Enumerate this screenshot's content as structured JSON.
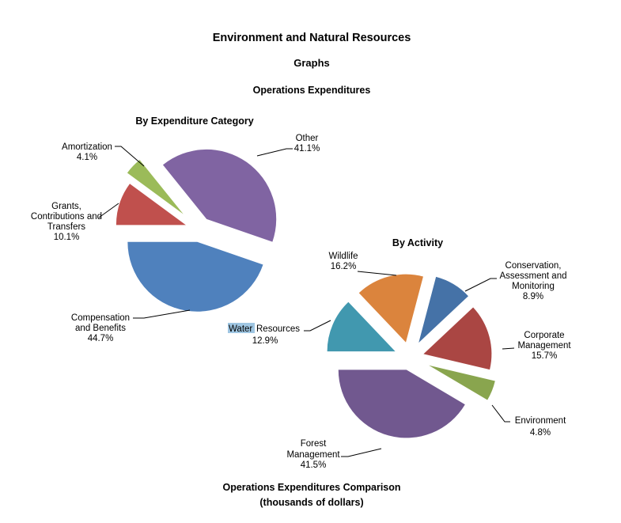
{
  "document": {
    "title": "Environment and Natural Resources",
    "subtitle": "Graphs",
    "section": "Operations Expenditures",
    "footer_title": "Operations Expenditures Comparison",
    "footer_units": "(thousands of dollars)"
  },
  "chart_data": [
    {
      "type": "pie",
      "title": "By Expenditure Category",
      "exploded": true,
      "slices": [
        {
          "name": "Grants, Contributions and Transfers",
          "label_lines": [
            "Grants,",
            "Contributions and",
            "Transfers"
          ],
          "value": 10.1,
          "label": "10.1%",
          "color": "#c0504d"
        },
        {
          "name": "Amortization",
          "label_lines": [
            "Amortization"
          ],
          "value": 4.1,
          "label": "4.1%",
          "color": "#9bbb59"
        },
        {
          "name": "Other",
          "label_lines": [
            "Other"
          ],
          "value": 41.1,
          "label": "41.1%",
          "color": "#8064a2"
        },
        {
          "name": "Compensation and Benefits",
          "label_lines": [
            "Compensation",
            "and Benefits"
          ],
          "value": 44.7,
          "label": "44.7%",
          "color": "#4f81bd"
        }
      ]
    },
    {
      "type": "pie",
      "title": "By Activity",
      "exploded": true,
      "slices": [
        {
          "name": "Water Resources",
          "label_lines": [
            "Water",
            "Resources"
          ],
          "value": 12.9,
          "label": "12.9%",
          "color": "#4198af",
          "highlighted_word": "Water"
        },
        {
          "name": "Wildlife",
          "label_lines": [
            "Wildlife"
          ],
          "value": 16.2,
          "label": "16.2%",
          "color": "#db843d"
        },
        {
          "name": "Conservation, Assessment and Monitoring",
          "label_lines": [
            "Conservation,",
            "Assessment and",
            "Monitoring"
          ],
          "value": 8.9,
          "label": "8.9%",
          "color": "#4572a7"
        },
        {
          "name": "Corporate Management",
          "label_lines": [
            "Corporate",
            "Management"
          ],
          "value": 15.7,
          "label": "15.7%",
          "color": "#aa4643"
        },
        {
          "name": "Environment",
          "label_lines": [
            "Environment"
          ],
          "value": 4.8,
          "label": "4.8%",
          "color": "#89a54e"
        },
        {
          "name": "Forest Management",
          "label_lines": [
            "Forest",
            "Management"
          ],
          "value": 41.5,
          "label": "41.5%",
          "color": "#71588f"
        }
      ]
    }
  ]
}
